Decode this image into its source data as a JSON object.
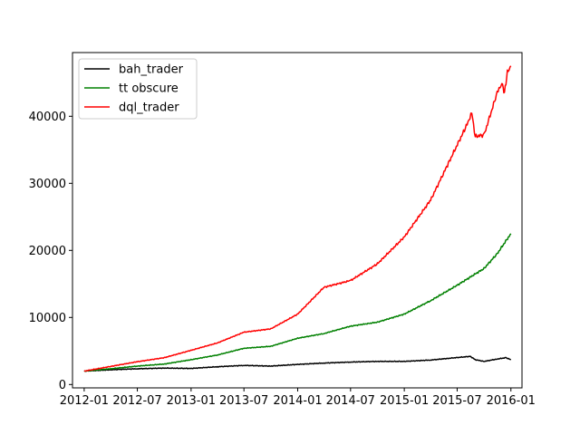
{
  "chart_data": {
    "type": "line",
    "title": "",
    "xlabel": "",
    "ylabel": "",
    "x_ticks": [
      "2012-01",
      "2012-07",
      "2013-01",
      "2013-07",
      "2014-01",
      "2014-07",
      "2015-01",
      "2015-07",
      "2016-01"
    ],
    "y_ticks": [
      0,
      10000,
      20000,
      30000,
      40000
    ],
    "xlim": [
      "2011-11-22",
      "2016-02-08"
    ],
    "ylim": [
      -500,
      49500
    ],
    "grid": false,
    "legend_position": "top-left",
    "series": [
      {
        "name": "bah_trader",
        "color": "#000000",
        "points": [
          [
            "2012-01-01",
            2000
          ],
          [
            "2012-04-01",
            2200
          ],
          [
            "2012-07-01",
            2350
          ],
          [
            "2012-10-01",
            2450
          ],
          [
            "2013-01-01",
            2400
          ],
          [
            "2013-04-01",
            2650
          ],
          [
            "2013-07-01",
            2850
          ],
          [
            "2013-10-01",
            2750
          ],
          [
            "2014-01-01",
            3000
          ],
          [
            "2014-04-01",
            3200
          ],
          [
            "2014-07-01",
            3350
          ],
          [
            "2014-10-01",
            3450
          ],
          [
            "2015-01-01",
            3450
          ],
          [
            "2015-04-01",
            3650
          ],
          [
            "2015-06-01",
            3900
          ],
          [
            "2015-08-15",
            4200
          ],
          [
            "2015-09-01",
            3700
          ],
          [
            "2015-10-01",
            3450
          ],
          [
            "2015-11-15",
            3800
          ],
          [
            "2015-12-15",
            4000
          ],
          [
            "2016-01-01",
            3700
          ]
        ]
      },
      {
        "name": "tt obscure",
        "color": "#008000",
        "points": [
          [
            "2012-01-01",
            2000
          ],
          [
            "2012-04-01",
            2350
          ],
          [
            "2012-07-01",
            2750
          ],
          [
            "2012-10-01",
            3050
          ],
          [
            "2013-01-01",
            3700
          ],
          [
            "2013-04-01",
            4400
          ],
          [
            "2013-07-01",
            5400
          ],
          [
            "2013-10-01",
            5700
          ],
          [
            "2014-01-01",
            6900
          ],
          [
            "2014-04-01",
            7600
          ],
          [
            "2014-07-01",
            8700
          ],
          [
            "2014-10-01",
            9300
          ],
          [
            "2015-01-01",
            10500
          ],
          [
            "2015-04-01",
            12500
          ],
          [
            "2015-07-01",
            14800
          ],
          [
            "2015-10-01",
            17300
          ],
          [
            "2015-11-15",
            19500
          ],
          [
            "2016-01-01",
            22500
          ]
        ]
      },
      {
        "name": "dql_trader",
        "color": "#ff0000",
        "points": [
          [
            "2012-01-01",
            2000
          ],
          [
            "2012-04-01",
            2700
          ],
          [
            "2012-07-01",
            3400
          ],
          [
            "2012-10-01",
            4000
          ],
          [
            "2013-01-01",
            5100
          ],
          [
            "2013-04-01",
            6200
          ],
          [
            "2013-07-01",
            7800
          ],
          [
            "2013-10-01",
            8300
          ],
          [
            "2014-01-01",
            10500
          ],
          [
            "2014-04-01",
            14500
          ],
          [
            "2014-07-01",
            15500
          ],
          [
            "2014-10-01",
            18000
          ],
          [
            "2015-01-01",
            22000
          ],
          [
            "2015-04-01",
            27500
          ],
          [
            "2015-06-01",
            33000
          ],
          [
            "2015-08-01",
            38500
          ],
          [
            "2015-08-20",
            40500
          ],
          [
            "2015-09-01",
            37000
          ],
          [
            "2015-10-01",
            37200
          ],
          [
            "2015-11-15",
            43500
          ],
          [
            "2015-12-01",
            45000
          ],
          [
            "2015-12-10",
            43500
          ],
          [
            "2015-12-20",
            46500
          ],
          [
            "2016-01-01",
            47500
          ]
        ]
      }
    ]
  }
}
